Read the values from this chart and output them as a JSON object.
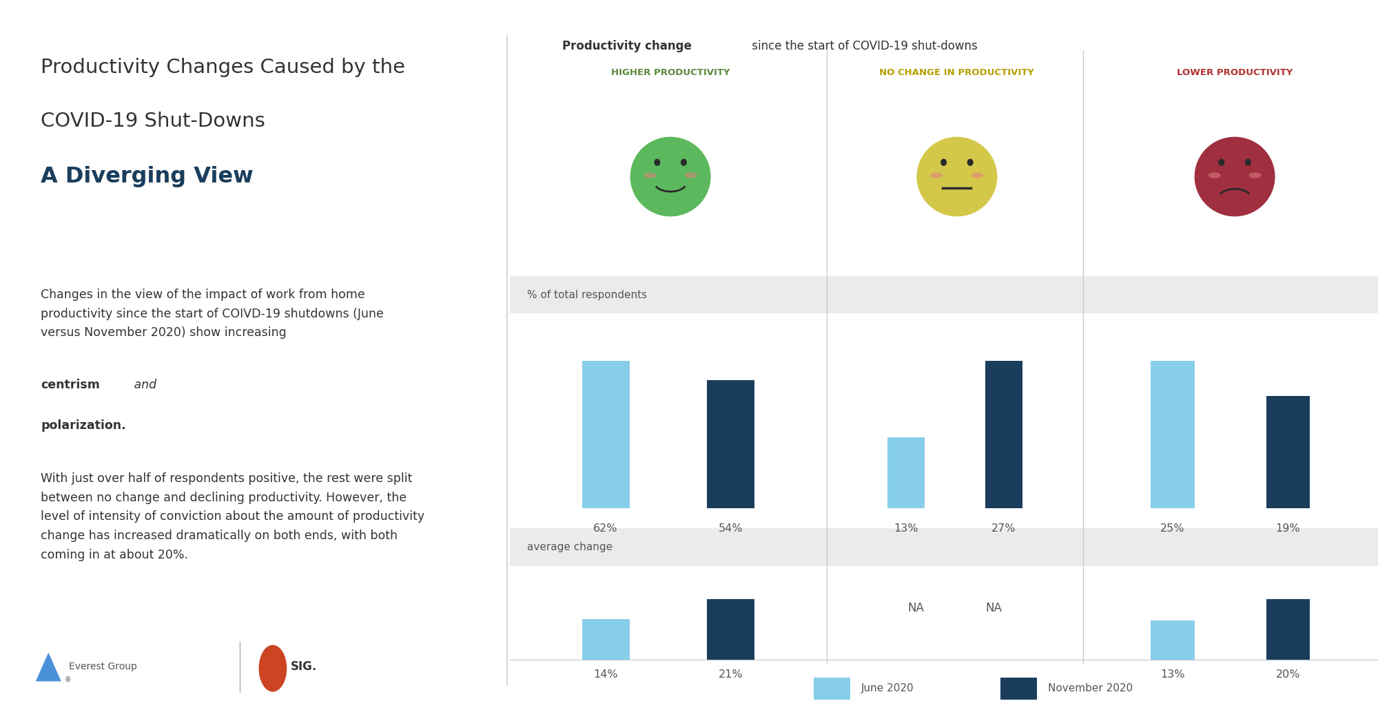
{
  "title_line1": "Productivity Changes Caused by the",
  "title_line2": "COVID-19 Shut-Downs",
  "title_line3": "A Diverging View",
  "subtitle_bold": "Productivity change",
  "subtitle_rest": " since the start of COVID-19 shut-downs",
  "categories": [
    "HIGHER PRODUCTIVITY",
    "NO CHANGE IN PRODUCTIVITY",
    "LOWER PRODUCTIVITY"
  ],
  "cat_colors": [
    "#5a8a3c",
    "#b5a000",
    "#b03030"
  ],
  "pct_label": "% of total respondents",
  "avg_label": "average change",
  "bar_color_june": "#87CEEB",
  "bar_color_nov": "#1a3d5c",
  "legend_june": "June 2020",
  "legend_nov": "November 2020",
  "background_color": "#ffffff",
  "panel_bg": "#ebebeb",
  "divider_color": "#cccccc",
  "emoji_higher_color": "#5cb85c",
  "emoji_nochange_color": "#d4c84a",
  "emoji_lower_color": "#a03040",
  "pct_bar_data": [
    {
      "june": 62,
      "nov": 54
    },
    {
      "june": 13,
      "nov": 27
    },
    {
      "june": 25,
      "nov": 19
    }
  ],
  "avg_bar_data": [
    {
      "june": 14,
      "nov": 21,
      "na": false
    },
    {
      "june": null,
      "nov": null,
      "na": true
    },
    {
      "june": 13,
      "nov": 20,
      "na": false
    }
  ]
}
